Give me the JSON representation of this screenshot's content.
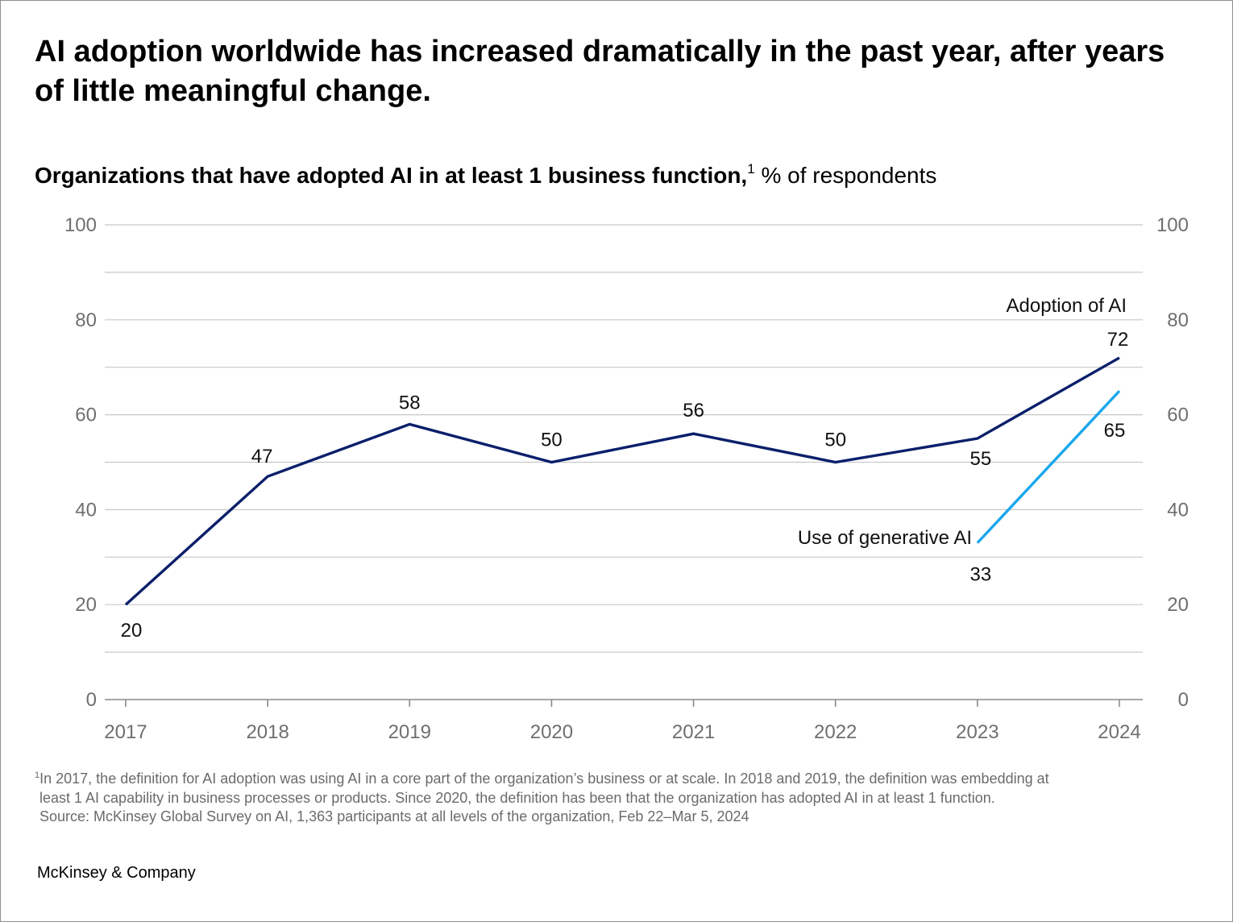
{
  "header": {
    "title": "AI adoption worldwide has increased dramatically in the past year, after years of little meaningful change.",
    "subtitle_bold": "Organizations that have adopted AI in at least 1 business function,",
    "subtitle_sup": "1",
    "subtitle_unit": "% of respondents"
  },
  "chart_data": {
    "type": "line",
    "x": [
      "2017",
      "2018",
      "2019",
      "2020",
      "2021",
      "2022",
      "2023",
      "2024"
    ],
    "ylim": [
      0,
      100
    ],
    "y_ticks": [
      "0",
      "20",
      "40",
      "60",
      "80",
      "100"
    ],
    "y_axis_sides": [
      "left",
      "right"
    ],
    "grid": true,
    "grid_step": 10,
    "series": [
      {
        "name": "Adoption of AI",
        "color": "#0b1f6b",
        "x": [
          "2017",
          "2018",
          "2019",
          "2020",
          "2021",
          "2022",
          "2023",
          "2024"
        ],
        "values": [
          20,
          47,
          58,
          50,
          56,
          50,
          55,
          72
        ],
        "labels": [
          "20",
          "47",
          "58",
          "50",
          "56",
          "50",
          "55",
          "72"
        ]
      },
      {
        "name": "Use of generative AI",
        "color": "#1aa7ec",
        "x": [
          "2023",
          "2024"
        ],
        "values": [
          33,
          65
        ],
        "labels": [
          "33",
          "65"
        ]
      }
    ]
  },
  "footer": {
    "footnote_sup": "1",
    "footnote_line1": "In 2017, the definition for AI adoption was using AI in a core part of the organization’s business or at scale. In 2018 and 2019, the definition was embedding at",
    "footnote_line2": "least 1 AI capability in business processes or products. Since 2020, the definition has been that the organization has adopted AI in at least 1 function.",
    "source": "Source: McKinsey Global Survey on AI, 1,363 participants at all levels of the organization, Feb 22–Mar 5, 2024",
    "brand": "McKinsey & Company"
  },
  "colors": {
    "grid": "#c8c8c8",
    "axis": "#8a8a8a",
    "tick_text": "#6f6f6f",
    "label_text": "#111111"
  }
}
